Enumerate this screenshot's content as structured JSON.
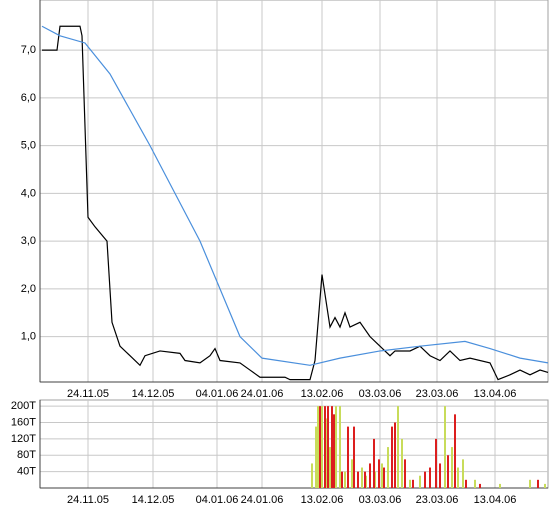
{
  "chart_data": [
    {
      "type": "line",
      "xlim": [
        0,
        508
      ],
      "xticks": [
        {
          "value": 48,
          "label": "24.11.05"
        },
        {
          "value": 113,
          "label": "14.12.05"
        },
        {
          "value": 177,
          "label": "04.01.06"
        },
        {
          "value": 222,
          "label": "24.01.06"
        },
        {
          "value": 282,
          "label": "13.02.06"
        },
        {
          "value": 340,
          "label": "03.03.06"
        },
        {
          "value": 397,
          "label": "23.03.06"
        },
        {
          "value": 455,
          "label": "13.04.06"
        }
      ],
      "ylim": [
        0.05,
        8.05
      ],
      "yticks": [
        {
          "value": 1,
          "label": "1,0"
        },
        {
          "value": 2,
          "label": "2,0"
        },
        {
          "value": 3,
          "label": "3,0"
        },
        {
          "value": 4,
          "label": "4,0"
        },
        {
          "value": 5,
          "label": "5,0"
        },
        {
          "value": 6,
          "label": "6,0"
        },
        {
          "value": 7,
          "label": "7,0"
        }
      ],
      "grid": true,
      "series": [
        {
          "color": "#000000",
          "x": [
            2,
            17,
            20,
            40,
            42,
            48,
            55,
            67,
            72,
            80,
            90,
            100,
            105,
            120,
            140,
            145,
            160,
            170,
            175,
            180,
            200,
            210,
            220,
            245,
            250,
            270,
            275,
            282,
            290,
            295,
            300,
            305,
            310,
            320,
            330,
            340,
            350,
            355,
            370,
            380,
            390,
            400,
            410,
            420,
            430,
            450,
            458,
            470,
            480,
            490,
            500,
            508
          ],
          "values": [
            7.0,
            7.0,
            7.5,
            7.5,
            7.3,
            3.5,
            3.3,
            3.0,
            1.3,
            0.8,
            0.6,
            0.4,
            0.6,
            0.7,
            0.65,
            0.5,
            0.45,
            0.6,
            0.75,
            0.5,
            0.45,
            0.3,
            0.15,
            0.15,
            0.1,
            0.1,
            0.5,
            2.3,
            1.2,
            1.4,
            1.2,
            1.5,
            1.2,
            1.3,
            1.0,
            0.8,
            0.6,
            0.7,
            0.7,
            0.8,
            0.6,
            0.5,
            0.7,
            0.5,
            0.55,
            0.45,
            0.1,
            0.2,
            0.3,
            0.2,
            0.3,
            0.25
          ]
        },
        {
          "color": "#4a8fdc",
          "x": [
            2,
            20,
            45,
            70,
            110,
            160,
            200,
            222,
            270,
            300,
            340,
            380,
            425,
            450,
            480,
            508
          ],
          "values": [
            7.5,
            7.3,
            7.15,
            6.5,
            5.0,
            3.0,
            1.0,
            0.55,
            0.4,
            0.55,
            0.7,
            0.8,
            0.9,
            0.75,
            0.55,
            0.45
          ]
        }
      ]
    },
    {
      "type": "bar",
      "xlim": [
        0,
        508
      ],
      "xticks": [
        {
          "value": 48,
          "label": "24.11.05"
        },
        {
          "value": 113,
          "label": "14.12.05"
        },
        {
          "value": 177,
          "label": "04.01.06"
        },
        {
          "value": 222,
          "label": "24.01.06"
        },
        {
          "value": 282,
          "label": "13.02.06"
        },
        {
          "value": 340,
          "label": "03.03.06"
        },
        {
          "value": 397,
          "label": "23.03.06"
        },
        {
          "value": 455,
          "label": "13.04.06"
        }
      ],
      "ylim": [
        0,
        215
      ],
      "yticks": [
        {
          "value": 40,
          "label": "40T"
        },
        {
          "value": 80,
          "label": "80T"
        },
        {
          "value": 120,
          "label": "120T"
        },
        {
          "value": 160,
          "label": "160T"
        },
        {
          "value": 200,
          "label": "200T"
        }
      ],
      "grid": true,
      "series": [
        {
          "color": "#c8dc5a",
          "x": [
            272,
            276,
            278,
            282,
            286,
            290,
            296,
            300,
            305,
            312,
            322,
            326,
            335,
            342,
            348,
            358,
            362,
            370,
            380,
            405,
            412,
            418,
            423,
            435,
            460,
            490,
            505
          ],
          "values": [
            60,
            150,
            200,
            200,
            170,
            100,
            200,
            200,
            40,
            70,
            50,
            30,
            40,
            60,
            100,
            200,
            120,
            20,
            30,
            200,
            100,
            50,
            70,
            20,
            10,
            20,
            10
          ]
        },
        {
          "color": "#dc1e1e",
          "x": [
            280,
            285,
            288,
            292,
            294,
            302,
            308,
            314,
            318,
            325,
            330,
            334,
            339,
            344,
            352,
            355,
            365,
            373,
            385,
            390,
            396,
            400,
            408,
            415,
            426,
            440,
            498
          ],
          "values": [
            200,
            200,
            200,
            200,
            180,
            40,
            150,
            150,
            40,
            40,
            60,
            120,
            70,
            50,
            150,
            160,
            70,
            20,
            40,
            50,
            120,
            60,
            80,
            180,
            20,
            10,
            20
          ]
        }
      ]
    }
  ]
}
